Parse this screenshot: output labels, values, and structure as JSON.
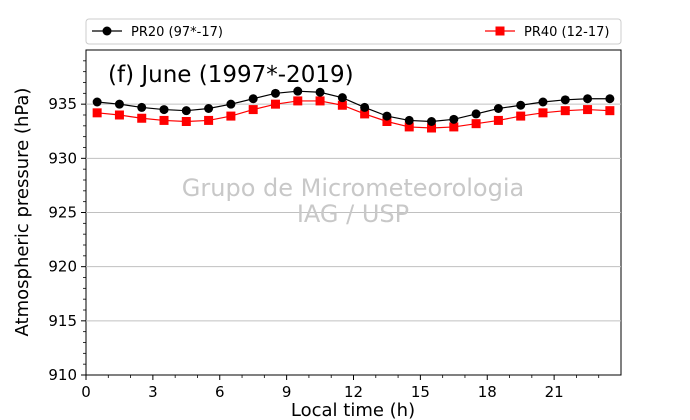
{
  "chart_data": {
    "type": "line",
    "title": "(f) June (1997*-2019)",
    "xlabel": "Local time (h)",
    "ylabel": "Atmospheric pressure (hPa)",
    "xlim": [
      0,
      24
    ],
    "ylim": [
      910,
      940
    ],
    "xticks": [
      0,
      3,
      6,
      9,
      12,
      15,
      18,
      21
    ],
    "yticks": [
      910,
      915,
      920,
      925,
      930,
      935
    ],
    "grid": "horizontal",
    "legend_position": "top, outside plot",
    "watermark": [
      "Grupo de Micrometeorologia",
      "IAG / USP"
    ],
    "x": [
      0.5,
      1.5,
      2.5,
      3.5,
      4.5,
      5.5,
      6.5,
      7.5,
      8.5,
      9.5,
      10.5,
      11.5,
      12.5,
      13.5,
      14.5,
      15.5,
      16.5,
      17.5,
      18.5,
      19.5,
      20.5,
      21.5,
      22.5,
      23.5
    ],
    "series": [
      {
        "name": "PR20 (97*-17)",
        "color": "#000000",
        "marker": "circle",
        "values": [
          935.2,
          935.0,
          934.7,
          934.5,
          934.4,
          934.6,
          935.0,
          935.5,
          936.0,
          936.2,
          936.1,
          935.6,
          934.7,
          933.9,
          933.5,
          933.4,
          933.6,
          934.1,
          934.6,
          934.9,
          935.2,
          935.4,
          935.5,
          935.5
        ]
      },
      {
        "name": "PR40 (12-17)",
        "color": "#ff0000",
        "marker": "square",
        "values": [
          934.2,
          934.0,
          933.7,
          933.5,
          933.4,
          933.5,
          933.9,
          934.5,
          935.0,
          935.3,
          935.3,
          934.9,
          934.1,
          933.4,
          932.9,
          932.8,
          932.9,
          933.2,
          933.5,
          933.9,
          934.2,
          934.4,
          934.5,
          934.4
        ]
      }
    ]
  }
}
